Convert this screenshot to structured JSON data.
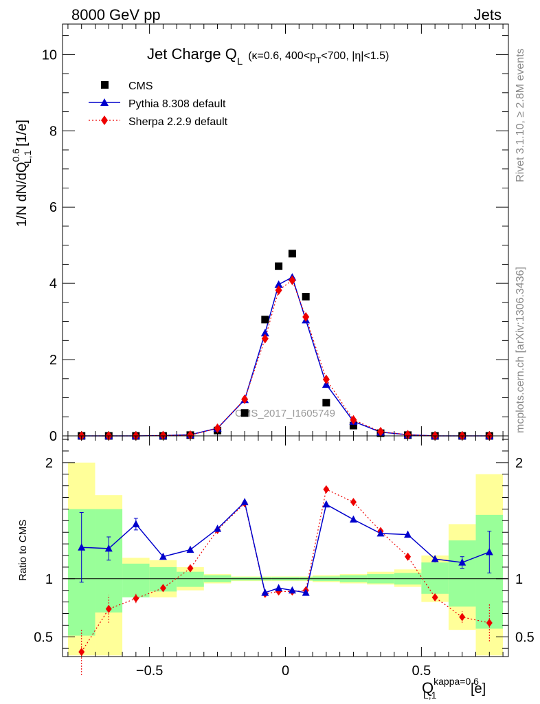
{
  "header": {
    "left": "8000 GeV pp",
    "right": "Jets"
  },
  "side_labels": {
    "rivet": "Rivet 3.1.10, ≥ 2.8M events",
    "site": "mcplots.cern.ch [arXiv:1306.3436]"
  },
  "watermark": "CMS_2017_I1605749",
  "colors": {
    "cms": "#000000",
    "pythia": "#0000cc",
    "sherpa": "#ee0000",
    "band_outer": "#ffff99",
    "band_inner": "#99ff99"
  },
  "chart_data": [
    {
      "type": "scatter",
      "panel": "main",
      "title": {
        "main": "Jet Charge Q",
        "main_sub": "L",
        "detail_pre": "(κ=0.6, 400<p",
        "detail_sub": "T",
        "detail_post": "<700, |η|<1.5)"
      },
      "ylabel": {
        "pre": "1/N dN/dQ",
        "sup": "0.6",
        "sub": "L,1",
        "post": " [1/e]"
      },
      "ylim": [
        0,
        10.8
      ],
      "xlim": [
        -0.82,
        0.82
      ],
      "yticks": [
        "0",
        "2",
        "4",
        "6",
        "8",
        "10"
      ],
      "legend_position": "top-left",
      "x": [
        -0.75,
        -0.65,
        -0.55,
        -0.45,
        -0.35,
        -0.25,
        -0.15,
        -0.075,
        -0.025,
        0.025,
        0.075,
        0.15,
        0.25,
        0.35,
        0.45,
        0.55,
        0.65,
        0.75
      ],
      "series": [
        {
          "name": "CMS",
          "marker": "square",
          "values": [
            0.0,
            0.0,
            0.0,
            0.0,
            0.02,
            0.14,
            0.6,
            3.05,
            4.45,
            4.78,
            3.65,
            0.87,
            0.27,
            0.07,
            0.02,
            0.0,
            0.0,
            0.0
          ]
        },
        {
          "name": "Pythia 8.308 default",
          "marker": "triangle",
          "values": [
            0.0,
            0.0,
            0.0,
            0.01,
            0.03,
            0.2,
            0.95,
            2.7,
            3.97,
            4.16,
            3.04,
            1.35,
            0.38,
            0.1,
            0.03,
            0.0,
            0.0,
            0.0
          ]
        },
        {
          "name": "Sherpa 2.2.9 default",
          "marker": "diamond",
          "values": [
            0.0,
            0.0,
            0.0,
            0.01,
            0.02,
            0.2,
            0.96,
            2.55,
            3.82,
            4.08,
            3.12,
            1.48,
            0.42,
            0.11,
            0.03,
            0.0,
            0.0,
            0.0
          ]
        }
      ]
    },
    {
      "type": "line",
      "panel": "ratio",
      "ylabel": "Ratio to CMS",
      "xlabel": {
        "main": "Q",
        "sup": "kappa=0.6",
        "sub": "L,1",
        "post": " [e]"
      },
      "xlim": [
        -0.82,
        0.82
      ],
      "ylim": [
        0.33,
        2.23
      ],
      "xticks": [
        "−0.5",
        "0",
        "0.5"
      ],
      "xtick_values": [
        -0.5,
        0,
        0.5
      ],
      "yticks": [
        "0.5",
        "1",
        "2"
      ],
      "ytick_values": [
        0.5,
        1,
        2
      ],
      "reference": 1.0,
      "bins": [
        [
          -0.8,
          -0.7
        ],
        [
          -0.7,
          -0.6
        ],
        [
          -0.6,
          -0.5
        ],
        [
          -0.5,
          -0.4
        ],
        [
          -0.4,
          -0.3
        ],
        [
          -0.3,
          -0.2
        ],
        [
          -0.2,
          -0.1
        ],
        [
          -0.1,
          -0.05
        ],
        [
          -0.05,
          0.0
        ],
        [
          0.0,
          0.05
        ],
        [
          0.05,
          0.1
        ],
        [
          0.1,
          0.2
        ],
        [
          0.2,
          0.3
        ],
        [
          0.3,
          0.4
        ],
        [
          0.4,
          0.5
        ],
        [
          0.5,
          0.6
        ],
        [
          0.6,
          0.7
        ],
        [
          0.7,
          0.8
        ]
      ],
      "band_outer": [
        [
          0.34,
          2.0
        ],
        [
          0.34,
          1.72
        ],
        [
          1.0,
          1.18
        ],
        [
          0.84,
          1.16
        ],
        [
          0.9,
          1.1
        ],
        [
          0.96,
          1.04
        ],
        [
          0.98,
          1.02
        ],
        [
          0.98,
          1.02
        ],
        [
          0.98,
          1.02
        ],
        [
          0.98,
          1.02
        ],
        [
          0.98,
          1.02
        ],
        [
          0.97,
          1.03
        ],
        [
          0.96,
          1.04
        ],
        [
          0.95,
          1.06
        ],
        [
          0.93,
          1.08
        ],
        [
          0.8,
          1.2
        ],
        [
          0.56,
          1.47
        ],
        [
          0.34,
          1.9
        ]
      ],
      "band_inner": [
        [
          0.51,
          1.6
        ],
        [
          0.71,
          1.6
        ],
        [
          0.84,
          1.13
        ],
        [
          0.89,
          1.1
        ],
        [
          0.93,
          1.06
        ],
        [
          0.97,
          1.03
        ],
        [
          0.985,
          1.015
        ],
        [
          0.985,
          1.015
        ],
        [
          0.985,
          1.015
        ],
        [
          0.985,
          1.015
        ],
        [
          0.985,
          1.015
        ],
        [
          0.98,
          1.02
        ],
        [
          0.97,
          1.03
        ],
        [
          0.96,
          1.04
        ],
        [
          0.95,
          1.05
        ],
        [
          0.87,
          1.14
        ],
        [
          0.76,
          1.33
        ],
        [
          0.57,
          1.55
        ]
      ],
      "x": [
        -0.75,
        -0.65,
        -0.55,
        -0.45,
        -0.35,
        -0.25,
        -0.15,
        -0.075,
        -0.025,
        0.025,
        0.075,
        0.15,
        0.25,
        0.35,
        0.45,
        0.55,
        0.65,
        0.75
      ],
      "series": [
        {
          "name": "Pythia 8.308 default",
          "values": [
            1.27,
            1.26,
            1.47,
            1.19,
            1.25,
            1.43,
            1.66,
            0.88,
            0.92,
            0.9,
            0.88,
            1.64,
            1.51,
            1.39,
            1.38,
            1.17,
            1.14,
            1.23
          ],
          "err_low": [
            0.3,
            0.1,
            0.05,
            0.02,
            0.02,
            0.02,
            0.02,
            0.01,
            0.01,
            0.01,
            0.01,
            0.02,
            0.02,
            0.02,
            0.02,
            0.03,
            0.05,
            0.18
          ],
          "err_high": [
            0.3,
            0.1,
            0.05,
            0.02,
            0.02,
            0.02,
            0.02,
            0.01,
            0.01,
            0.01,
            0.01,
            0.02,
            0.02,
            0.02,
            0.02,
            0.03,
            0.05,
            0.18
          ]
        },
        {
          "name": "Sherpa 2.2.9 default",
          "values": [
            0.37,
            0.74,
            0.83,
            0.92,
            1.09,
            1.42,
            1.65,
            0.87,
            0.89,
            0.89,
            0.9,
            1.77,
            1.66,
            1.41,
            1.19,
            0.84,
            0.67,
            0.62
          ],
          "err_low": [
            0.2,
            0.12,
            0.04,
            0.02,
            0.02,
            0.02,
            0.02,
            0.01,
            0.01,
            0.01,
            0.01,
            0.02,
            0.02,
            0.02,
            0.02,
            0.02,
            0.05,
            0.16
          ],
          "err_high": [
            0.2,
            0.12,
            0.04,
            0.02,
            0.02,
            0.02,
            0.02,
            0.01,
            0.01,
            0.01,
            0.01,
            0.02,
            0.02,
            0.02,
            0.02,
            0.02,
            0.05,
            0.16
          ]
        }
      ]
    }
  ]
}
